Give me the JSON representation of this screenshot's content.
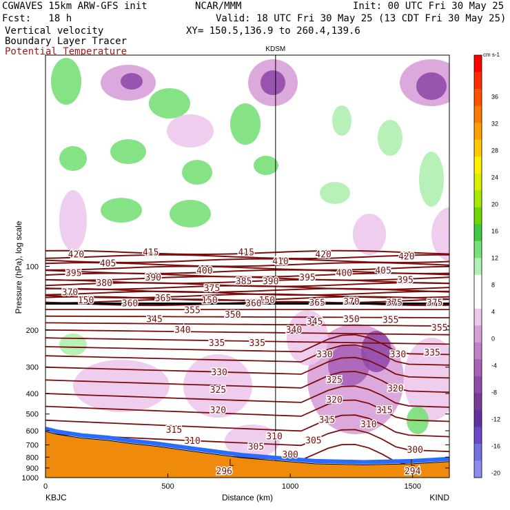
{
  "header": {
    "model": "CGWAVES 15km ARW-GFS init",
    "center": "NCAR/MMM",
    "init": "Init: 00 UTC Fri 30 May 25",
    "fcst": "Fcst:   18 h",
    "valid": "Valid: 18 UTC Fri 30 May 25 (13 CDT Fri 30 May 25)",
    "field1": "Vertical velocity",
    "field2": "Boundary Layer Tracer",
    "field3": "Potential Temperature",
    "xy": "XY= 150.5,136.9 to 260.4,139.6"
  },
  "colors": {
    "theta": "#7a0c0c",
    "terrain": "#f08a0c"
  },
  "chart_data": {
    "type": "heatmap",
    "title": "Vertical velocity / Boundary Layer Tracer / Potential Temperature",
    "station_marker": {
      "label": "KDSM",
      "x": 940
    },
    "x_axis": {
      "label": "Distance (km)",
      "range": [
        0,
        1650
      ],
      "ticks": [
        0,
        500,
        1000,
        1500
      ],
      "end_labels": [
        "KBJC",
        "KIND"
      ]
    },
    "y_axis": {
      "label": "Pressure (hPa), log scale",
      "scale": "log",
      "range": [
        1000,
        10
      ],
      "ticks": [
        100,
        200,
        300,
        400,
        500,
        600,
        700,
        800,
        900,
        1000
      ]
    },
    "colorbar": {
      "unit": "cm s-1",
      "tick_labels": [
        36,
        32,
        28,
        24,
        20,
        16,
        12,
        8,
        4,
        0,
        -4,
        -8,
        -12,
        -16,
        -20
      ],
      "colors": [
        "#ff0000",
        "#ff2a00",
        "#ff5000",
        "#ff7800",
        "#ffa000",
        "#ffc800",
        "#fff000",
        "#d8f000",
        "#a8e800",
        "#70d800",
        "#40c840",
        "#78e078",
        "#b0f0b0",
        "#ffffff",
        "#ffffff",
        "#ecc8ec",
        "#d8a0d8",
        "#c080c8",
        "#a860b8",
        "#904aa8",
        "#7a3a98",
        "#6030a0",
        "#6848c8",
        "#7070e0",
        "#8c8cf0"
      ]
    },
    "theta_labels": [
      {
        "v": "420",
        "x": 125,
        "p": 88
      },
      {
        "v": "415",
        "x": 430,
        "p": 86
      },
      {
        "v": "415",
        "x": 820,
        "p": 86
      },
      {
        "v": "420",
        "x": 1135,
        "p": 88
      },
      {
        "v": "420",
        "x": 1475,
        "p": 90
      },
      {
        "v": "405",
        "x": 255,
        "p": 97
      },
      {
        "v": "410",
        "x": 960,
        "p": 95
      },
      {
        "v": "395",
        "x": 115,
        "p": 108
      },
      {
        "v": "390",
        "x": 440,
        "p": 113
      },
      {
        "v": "400",
        "x": 650,
        "p": 105
      },
      {
        "v": "405",
        "x": 1380,
        "p": 105
      },
      {
        "v": "400",
        "x": 1220,
        "p": 108
      },
      {
        "v": "395",
        "x": 1070,
        "p": 113
      },
      {
        "v": "395",
        "x": 1470,
        "p": 116
      },
      {
        "v": "380",
        "x": 240,
        "p": 120
      },
      {
        "v": "385",
        "x": 810,
        "p": 118
      },
      {
        "v": "390",
        "x": 920,
        "p": 118
      },
      {
        "v": "375",
        "x": 680,
        "p": 127
      },
      {
        "v": "370",
        "x": 100,
        "p": 133
      },
      {
        "v": "365",
        "x": 480,
        "p": 142
      },
      {
        "v": "150",
        "x": 165,
        "p": 145
      },
      {
        "v": "150",
        "x": 670,
        "p": 145
      },
      {
        "v": "150",
        "x": 905,
        "p": 145
      },
      {
        "v": "360",
        "x": 345,
        "p": 150
      },
      {
        "v": "360",
        "x": 850,
        "p": 150
      },
      {
        "v": "365",
        "x": 1110,
        "p": 149
      },
      {
        "v": "370",
        "x": 1250,
        "p": 147
      },
      {
        "v": "375",
        "x": 1425,
        "p": 149
      },
      {
        "v": "375",
        "x": 1590,
        "p": 149
      },
      {
        "v": "355",
        "x": 600,
        "p": 162
      },
      {
        "v": "350",
        "x": 765,
        "p": 170
      },
      {
        "v": "345",
        "x": 445,
        "p": 178
      },
      {
        "v": "345",
        "x": 1100,
        "p": 183
      },
      {
        "v": "350",
        "x": 1250,
        "p": 178
      },
      {
        "v": "355",
        "x": 1410,
        "p": 180
      },
      {
        "v": "355",
        "x": 1610,
        "p": 196
      },
      {
        "v": "340",
        "x": 560,
        "p": 200
      },
      {
        "v": "340",
        "x": 1015,
        "p": 200
      },
      {
        "v": "335",
        "x": 700,
        "p": 231
      },
      {
        "v": "335",
        "x": 865,
        "p": 231
      },
      {
        "v": "335",
        "x": 1580,
        "p": 257
      },
      {
        "v": "330",
        "x": 1140,
        "p": 262
      },
      {
        "v": "330",
        "x": 1440,
        "p": 262
      },
      {
        "v": "330",
        "x": 710,
        "p": 318
      },
      {
        "v": "325",
        "x": 1180,
        "p": 345
      },
      {
        "v": "325",
        "x": 705,
        "p": 385
      },
      {
        "v": "320",
        "x": 1430,
        "p": 380
      },
      {
        "v": "320",
        "x": 1180,
        "p": 430
      },
      {
        "v": "320",
        "x": 705,
        "p": 480
      },
      {
        "v": "315",
        "x": 1385,
        "p": 480
      },
      {
        "v": "315",
        "x": 1150,
        "p": 535
      },
      {
        "v": "310",
        "x": 1320,
        "p": 560
      },
      {
        "v": "315",
        "x": 525,
        "p": 595
      },
      {
        "v": "310",
        "x": 935,
        "p": 640
      },
      {
        "v": "310",
        "x": 600,
        "p": 672
      },
      {
        "v": "305",
        "x": 860,
        "p": 715
      },
      {
        "v": "305",
        "x": 1095,
        "p": 670
      },
      {
        "v": "300",
        "x": 1510,
        "p": 740
      },
      {
        "v": "300",
        "x": 1000,
        "p": 780
      },
      {
        "v": "296",
        "x": 730,
        "p": 935
      },
      {
        "v": "294",
        "x": 1500,
        "p": 935
      }
    ],
    "L_markers": [
      {
        "x": 760,
        "p": 880
      },
      {
        "x": 1500,
        "p": 880
      }
    ],
    "terrain_surface_hPa": [
      {
        "x": 0,
        "p": 605
      },
      {
        "x": 50,
        "p": 625
      },
      {
        "x": 150,
        "p": 650
      },
      {
        "x": 250,
        "p": 665
      },
      {
        "x": 350,
        "p": 690
      },
      {
        "x": 450,
        "p": 710
      },
      {
        "x": 600,
        "p": 750
      },
      {
        "x": 800,
        "p": 805
      },
      {
        "x": 940,
        "p": 830
      },
      {
        "x": 1100,
        "p": 860
      },
      {
        "x": 1300,
        "p": 870
      },
      {
        "x": 1500,
        "p": 860
      },
      {
        "x": 1650,
        "p": 840
      }
    ]
  }
}
